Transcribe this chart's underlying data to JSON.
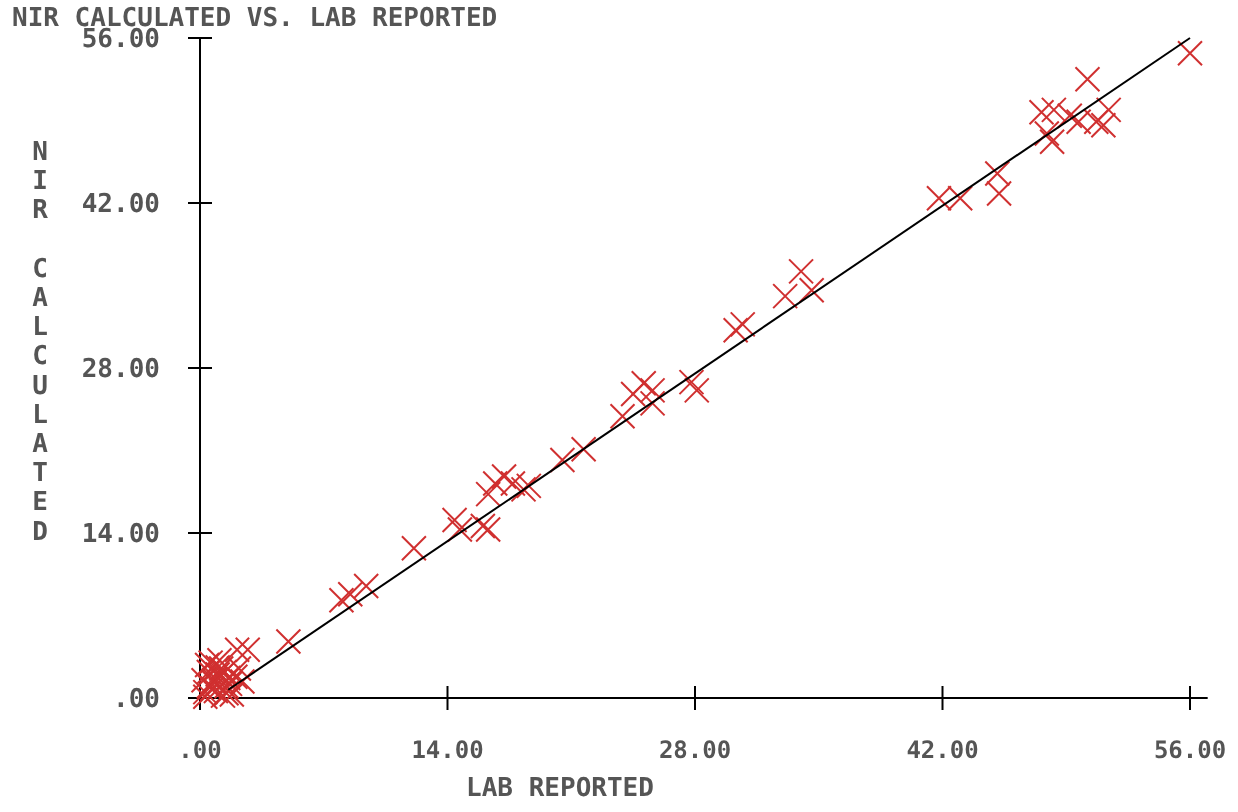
{
  "chart_data": {
    "type": "scatter",
    "title": "NIR CALCULATED VS. LAB REPORTED",
    "xlabel": "LAB REPORTED",
    "ylabel": "NIR CALCULATED",
    "grid": false,
    "xlim": [
      0,
      57
    ],
    "ylim": [
      0,
      56
    ],
    "xticks": [
      {
        "value": 0,
        "label": ".00"
      },
      {
        "value": 14,
        "label": "14.00"
      },
      {
        "value": 28,
        "label": "28.00"
      },
      {
        "value": 42,
        "label": "42.00"
      },
      {
        "value": 56,
        "label": "56.00"
      }
    ],
    "yticks": [
      {
        "value": 0,
        "label": ".00"
      },
      {
        "value": 14,
        "label": "14.00"
      },
      {
        "value": 28,
        "label": "28.00"
      },
      {
        "value": 42,
        "label": "42.00"
      },
      {
        "value": 56,
        "label": "56.00"
      }
    ],
    "series": [
      {
        "type": "scatter",
        "marker": "cross",
        "color": "#d03030",
        "x": [
          56,
          50.2,
          47.6,
          48.3,
          49.2,
          49.7,
          50.7,
          51.4,
          51.1,
          48.2,
          47.9,
          45.1,
          45.2,
          41.8,
          43,
          34,
          33.1,
          34.6,
          30.7,
          30.3,
          27.8,
          28.1,
          25.6,
          25.1,
          24.5,
          25.6,
          23.9,
          21.7,
          20.5,
          18.6,
          17.2,
          16.7,
          16.3,
          17.7,
          14.4,
          14.7,
          16.3,
          12.1,
          18.3,
          16,
          9.4,
          8.5,
          8,
          5,
          2.7,
          2.1,
          0.3,
          0.5,
          0.8,
          1,
          1.2,
          1.5,
          1.8,
          2,
          0.4,
          0.7,
          1.1,
          1.4,
          1.7,
          2.2,
          0.2,
          0.6,
          0.9,
          1.3,
          1.6,
          0.5,
          1,
          1.5,
          0.8,
          1.2,
          2.4,
          0.3
        ],
        "values": [
          54.7,
          52.5,
          49.7,
          49.9,
          49.4,
          48.9,
          48.9,
          49.9,
          48.6,
          47.2,
          47.9,
          44.5,
          42.8,
          42.4,
          42.4,
          36.2,
          34.1,
          34.6,
          31.7,
          31.2,
          26.8,
          26.1,
          26.1,
          26.7,
          25.8,
          25,
          23.9,
          21.1,
          20.2,
          18,
          18.8,
          18.2,
          17.3,
          18.2,
          15.1,
          14.3,
          14.3,
          12.7,
          17.7,
          14.6,
          9.5,
          8.8,
          8.3,
          4.8,
          4.1,
          4.1,
          0.5,
          1,
          1.5,
          2,
          2.5,
          1,
          0.3,
          1.8,
          2.8,
          0.8,
          3.2,
          2.2,
          1.2,
          2.5,
          1.5,
          3,
          0.6,
          0.2,
          1.7,
          2.2,
          2.6,
          0.4,
          1.3,
          1.9,
          1.4,
          0.1
        ]
      },
      {
        "type": "line",
        "color": "#000000",
        "x": [
          1.6,
          56
        ],
        "values": [
          0.7,
          56
        ]
      }
    ]
  }
}
